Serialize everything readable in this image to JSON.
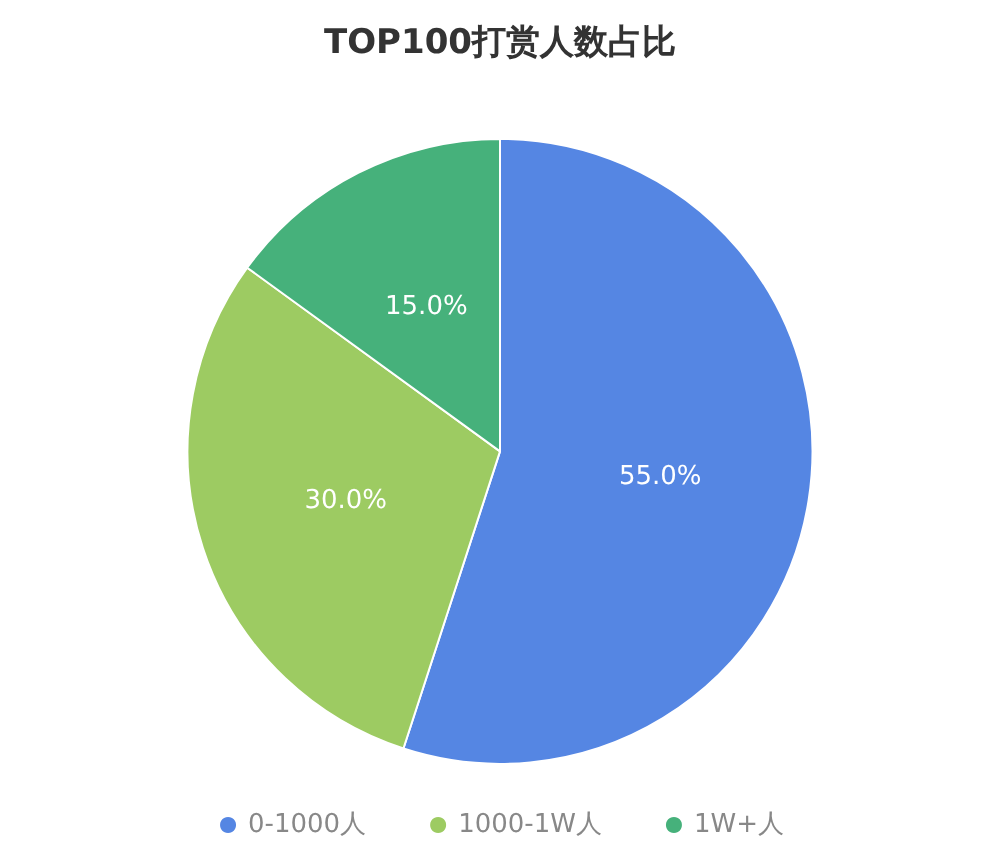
{
  "chart_data": {
    "type": "pie",
    "title": "TOP100打赏人数占比",
    "categories": [
      "0-1000人",
      "1000-1W人",
      "1W+人"
    ],
    "values": [
      55,
      30,
      15
    ],
    "colors": [
      "#5586e3",
      "#9dcb62",
      "#46b17b"
    ],
    "value_labels": [
      "55.0%",
      "30.0%",
      "15.0%"
    ],
    "legend": "bottom"
  }
}
